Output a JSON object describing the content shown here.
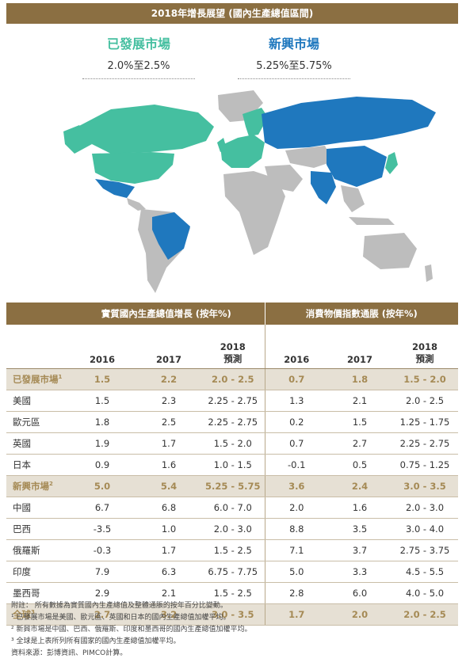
{
  "header": {
    "title": "2018年增長展望 (國內生產總值區間)"
  },
  "legend": {
    "developed": {
      "name": "已發展市場",
      "range": "2.0%至2.5%",
      "color": "#45bfa0"
    },
    "emerging": {
      "name": "新興市場",
      "range": "5.25%至5.75%",
      "color": "#1f78be"
    }
  },
  "map": {
    "land_color": "#bdbdbd"
  },
  "table": {
    "group_gdp": "實質國內生產總值增長 (按年%)",
    "group_cpi": "消費物價指數通脹 (按年%)",
    "sub": [
      "2016",
      "2017",
      "2018",
      "預測"
    ],
    "rows": [
      {
        "label": "已發展市場",
        "sup": "1",
        "hl": true,
        "v": [
          "1.5",
          "2.2",
          "2.0 - 2.5",
          "0.7",
          "1.8",
          "1.5 - 2.0"
        ]
      },
      {
        "label": "美國",
        "v": [
          "1.5",
          "2.3",
          "2.25 - 2.75",
          "1.3",
          "2.1",
          "2.0 - 2.5"
        ]
      },
      {
        "label": "歐元區",
        "v": [
          "1.8",
          "2.5",
          "2.25 - 2.75",
          "0.2",
          "1.5",
          "1.25 - 1.75"
        ]
      },
      {
        "label": "英國",
        "v": [
          "1.9",
          "1.7",
          "1.5 - 2.0",
          "0.7",
          "2.7",
          "2.25 - 2.75"
        ]
      },
      {
        "label": "日本",
        "v": [
          "0.9",
          "1.6",
          "1.0 - 1.5",
          "-0.1",
          "0.5",
          "0.75 - 1.25"
        ]
      },
      {
        "label": "新興市場",
        "sup": "2",
        "hl": true,
        "v": [
          "5.0",
          "5.4",
          "5.25 - 5.75",
          "3.6",
          "2.4",
          "3.0 - 3.5"
        ]
      },
      {
        "label": "中國",
        "v": [
          "6.7",
          "6.8",
          "6.0 - 7.0",
          "2.0",
          "1.6",
          "2.0 - 3.0"
        ]
      },
      {
        "label": "巴西",
        "v": [
          "-3.5",
          "1.0",
          "2.0 - 3.0",
          "8.8",
          "3.5",
          "3.0 - 4.0"
        ]
      },
      {
        "label": "俄羅斯",
        "v": [
          "-0.3",
          "1.7",
          "1.5 - 2.5",
          "7.1",
          "3.7",
          "2.75 - 3.75"
        ]
      },
      {
        "label": "印度",
        "v": [
          "7.9",
          "6.3",
          "6.75 - 7.75",
          "5.0",
          "3.3",
          "4.5 - 5.5"
        ]
      },
      {
        "label": "墨西哥",
        "v": [
          "2.9",
          "2.1",
          "1.5 - 2.5",
          "2.8",
          "6.0",
          "4.0 - 5.0"
        ]
      },
      {
        "label": "全球",
        "sup": "3",
        "hl": true,
        "v": [
          "2.7",
          "3.2",
          "3.0 - 3.5",
          "1.7",
          "2.0",
          "2.0 - 2.5"
        ]
      }
    ]
  },
  "notes": [
    "附註： 所有數據為實質國內生產總值及整體通脹的按年百分比變動。",
    "¹ 已發展市場是美國、歐元區、英國和日本的國內生產總值加權平均。",
    "² 新興市場是中國、巴西、俄羅斯、印度和墨西哥的國內生產總值加權平均。",
    "³ 全球是上表所列所有國家的國內生產總值加權平均。",
    "資料來源：彭博資訊、PIMCO計算。"
  ]
}
